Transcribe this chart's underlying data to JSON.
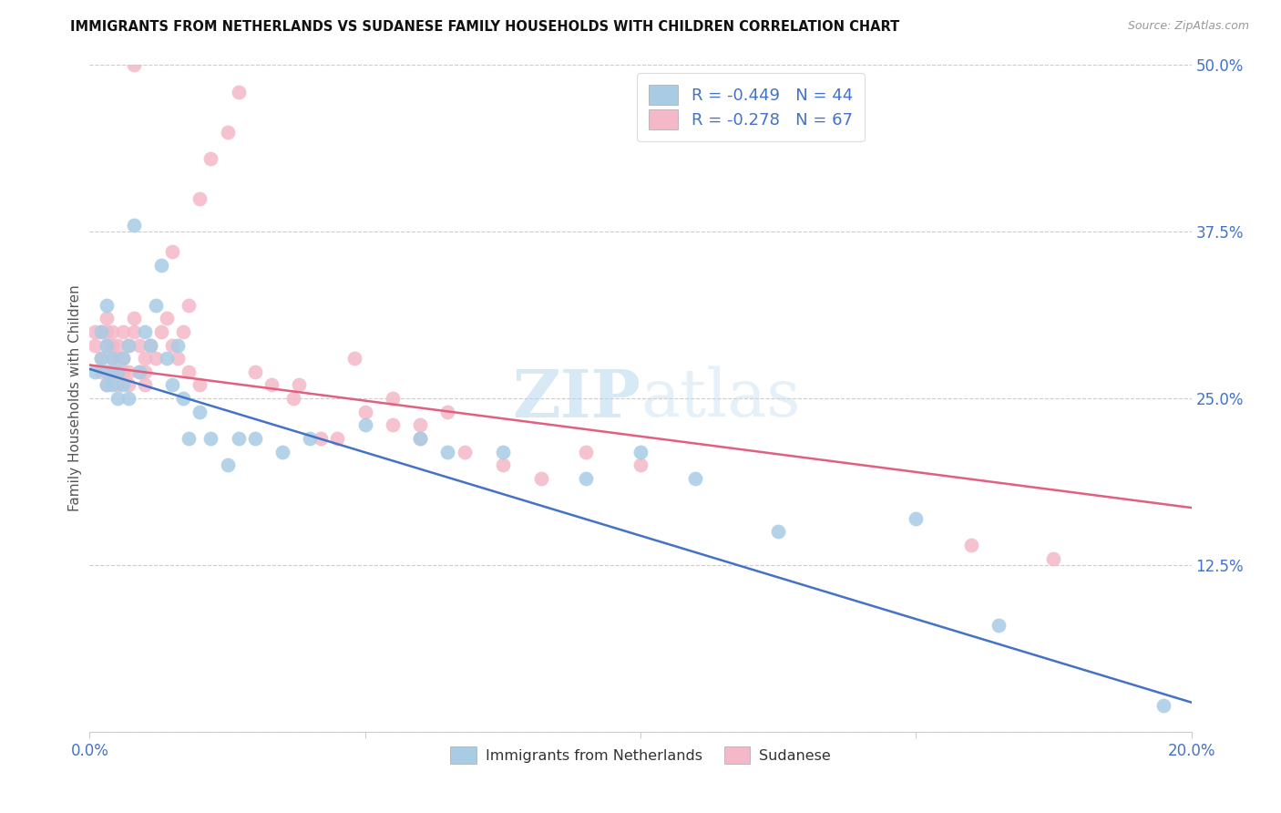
{
  "title": "IMMIGRANTS FROM NETHERLANDS VS SUDANESE FAMILY HOUSEHOLDS WITH CHILDREN CORRELATION CHART",
  "source": "Source: ZipAtlas.com",
  "ylabel": "Family Households with Children",
  "x_min": 0.0,
  "x_max": 0.2,
  "y_min": 0.0,
  "y_max": 0.5,
  "y_ticks": [
    0.0,
    0.125,
    0.25,
    0.375,
    0.5
  ],
  "y_tick_labels": [
    "",
    "12.5%",
    "25.0%",
    "37.5%",
    "50.0%"
  ],
  "x_ticks": [
    0.0,
    0.05,
    0.1,
    0.15,
    0.2
  ],
  "x_tick_labels_show": [
    "0.0%",
    "",
    "",
    "",
    "20.0%"
  ],
  "legend_label1": "Immigrants from Netherlands",
  "legend_label2": "Sudanese",
  "R1": -0.449,
  "N1": 44,
  "R2": -0.278,
  "N2": 67,
  "color_blue": "#a8cce4",
  "color_pink": "#f4b8c8",
  "color_line_blue": "#4472c4",
  "color_line_pink": "#e06080",
  "watermark_zip": "ZIP",
  "watermark_atlas": "atlas",
  "blue_line_y0": 0.272,
  "blue_line_y1": 0.022,
  "pink_line_y0": 0.275,
  "pink_line_y1": 0.168,
  "nl_x": [
    0.001,
    0.002,
    0.002,
    0.003,
    0.003,
    0.003,
    0.003,
    0.004,
    0.004,
    0.005,
    0.005,
    0.006,
    0.006,
    0.007,
    0.007,
    0.008,
    0.009,
    0.01,
    0.011,
    0.012,
    0.013,
    0.014,
    0.015,
    0.016,
    0.017,
    0.018,
    0.02,
    0.022,
    0.025,
    0.027,
    0.03,
    0.035,
    0.04,
    0.05,
    0.06,
    0.065,
    0.075,
    0.09,
    0.1,
    0.11,
    0.125,
    0.15,
    0.165,
    0.195
  ],
  "nl_y": [
    0.27,
    0.28,
    0.3,
    0.26,
    0.27,
    0.29,
    0.32,
    0.26,
    0.28,
    0.25,
    0.27,
    0.26,
    0.28,
    0.25,
    0.29,
    0.38,
    0.27,
    0.3,
    0.29,
    0.32,
    0.35,
    0.28,
    0.26,
    0.29,
    0.25,
    0.22,
    0.24,
    0.22,
    0.2,
    0.22,
    0.22,
    0.21,
    0.22,
    0.23,
    0.22,
    0.21,
    0.21,
    0.19,
    0.21,
    0.19,
    0.15,
    0.16,
    0.08,
    0.02
  ],
  "su_x": [
    0.001,
    0.001,
    0.002,
    0.002,
    0.002,
    0.003,
    0.003,
    0.003,
    0.003,
    0.003,
    0.004,
    0.004,
    0.004,
    0.004,
    0.005,
    0.005,
    0.005,
    0.005,
    0.006,
    0.006,
    0.006,
    0.007,
    0.007,
    0.007,
    0.008,
    0.008,
    0.009,
    0.009,
    0.01,
    0.01,
    0.011,
    0.012,
    0.013,
    0.014,
    0.015,
    0.016,
    0.017,
    0.018,
    0.02,
    0.022,
    0.025,
    0.027,
    0.03,
    0.033,
    0.037,
    0.042,
    0.048,
    0.055,
    0.06,
    0.065,
    0.038,
    0.045,
    0.05,
    0.055,
    0.06,
    0.068,
    0.075,
    0.082,
    0.09,
    0.1,
    0.008,
    0.01,
    0.015,
    0.018,
    0.02,
    0.16,
    0.175
  ],
  "su_y": [
    0.29,
    0.3,
    0.27,
    0.28,
    0.3,
    0.26,
    0.27,
    0.29,
    0.3,
    0.31,
    0.27,
    0.28,
    0.29,
    0.3,
    0.26,
    0.27,
    0.28,
    0.29,
    0.27,
    0.28,
    0.3,
    0.26,
    0.27,
    0.29,
    0.3,
    0.31,
    0.27,
    0.29,
    0.26,
    0.27,
    0.29,
    0.28,
    0.3,
    0.31,
    0.36,
    0.28,
    0.3,
    0.32,
    0.4,
    0.43,
    0.45,
    0.48,
    0.27,
    0.26,
    0.25,
    0.22,
    0.28,
    0.25,
    0.23,
    0.24,
    0.26,
    0.22,
    0.24,
    0.23,
    0.22,
    0.21,
    0.2,
    0.19,
    0.21,
    0.2,
    0.5,
    0.28,
    0.29,
    0.27,
    0.26,
    0.14,
    0.13
  ]
}
